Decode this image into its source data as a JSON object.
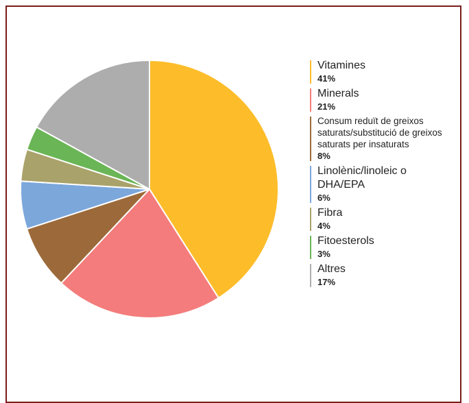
{
  "chart_data": {
    "type": "pie",
    "start_angle_deg": 0,
    "direction": "clockwise",
    "slices": [
      {
        "label": "Vitamines",
        "value_label": "41%",
        "value": 41,
        "color": "#FDBD2A"
      },
      {
        "label": "Minerals",
        "value_label": "21%",
        "value": 21,
        "color": "#F47C7C"
      },
      {
        "label": "Consum reduït de greixos saturats/substitució de greixos saturats per insaturats",
        "value_label": "8%",
        "value": 8,
        "color": "#9C6A3A"
      },
      {
        "label": "Linolènic/linoleic o DHA/EPA",
        "value_label": "6%",
        "value": 6,
        "color": "#7BA7DB"
      },
      {
        "label": "Fibra",
        "value_label": "4%",
        "value": 4,
        "color": "#A9A26A"
      },
      {
        "label": "Fitoesterols",
        "value_label": "3%",
        "value": 3,
        "color": "#6AB556"
      },
      {
        "label": "Altres",
        "value_label": "17%",
        "value": 17,
        "color": "#ADADAD"
      }
    ],
    "legend_position": "right",
    "border_color": "#7B1C1C"
  }
}
